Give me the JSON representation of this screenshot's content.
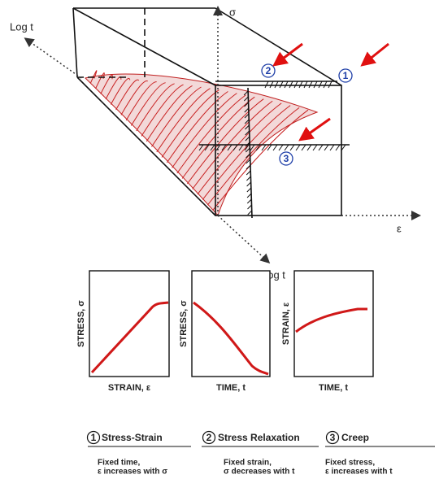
{
  "diagram": {
    "axes": {
      "sigma": "σ",
      "epsilon": "ε",
      "log_t_top": "Log t",
      "log_t_bottom": "Log t"
    },
    "markers": [
      "1",
      "2",
      "3"
    ]
  },
  "panels": [
    {
      "number": "1",
      "y_label": "STRESS, σ",
      "x_label": "STRAIN, ε",
      "title": "Stress-Strain",
      "description": [
        "Fixed time,",
        "ε increases with σ"
      ]
    },
    {
      "number": "2",
      "y_label": "STRESS, σ",
      "x_label": "TIME, t",
      "title": "Stress Relaxation",
      "description": [
        "Fixed strain,",
        "σ decreases with t"
      ]
    },
    {
      "number": "3",
      "y_label": "STRAIN, ε",
      "x_label": "TIME, t",
      "title": "Creep",
      "description": [
        "Fixed stress,",
        "ε increases with t"
      ]
    }
  ]
}
